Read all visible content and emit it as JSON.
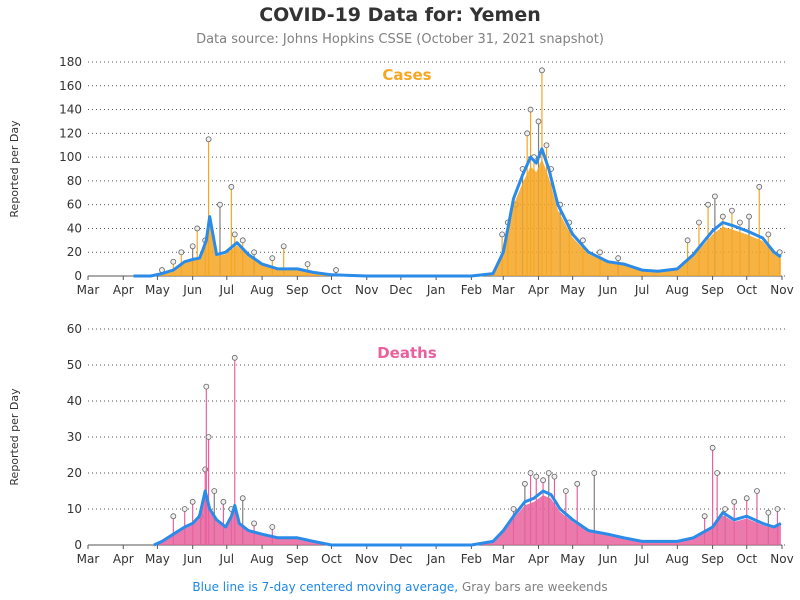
{
  "header": {
    "title": "COVID-19 Data for: Yemen",
    "subtitle": "Data source: Johns Hopkins CSSE (October 31, 2021 snapshot)"
  },
  "footnote": {
    "blue_text": "Blue line is 7-day centered moving average,",
    "gray_text": "Gray bars are weekends"
  },
  "colors": {
    "cases": "#f5a623",
    "deaths": "#e8619e",
    "average": "#2a8be8",
    "weekend": "#808080",
    "grid": "#555555"
  },
  "chart_data": [
    {
      "type": "bar",
      "title": "Cases",
      "ylabel": "Reported per Day",
      "ylim": [
        0,
        180
      ],
      "yticks": [
        0,
        20,
        40,
        60,
        80,
        100,
        120,
        140,
        160,
        180
      ],
      "xticks": [
        "Mar",
        "Apr",
        "May",
        "Jun",
        "Jul",
        "Aug",
        "Sep",
        "Oct",
        "Nov",
        "Dec",
        "Jan",
        "Feb",
        "Mar",
        "Apr",
        "May",
        "Jun",
        "Jul",
        "Aug",
        "Sep",
        "Oct",
        "Nov"
      ],
      "x_range": [
        "2020-03-01",
        "2021-11-01"
      ],
      "grid": "horizontal dotted",
      "series": [
        {
          "name": "Blue line is 7-day centered moving average",
          "x": [
            "2020-04-10",
            "2020-04-25",
            "2020-05-05",
            "2020-05-15",
            "2020-05-25",
            "2020-06-01",
            "2020-06-07",
            "2020-06-10",
            "2020-06-13",
            "2020-06-16",
            "2020-06-22",
            "2020-06-30",
            "2020-07-10",
            "2020-07-20",
            "2020-08-01",
            "2020-08-15",
            "2020-09-01",
            "2020-09-15",
            "2020-10-01",
            "2020-11-01",
            "2020-12-01",
            "2021-01-01",
            "2021-02-01",
            "2021-02-20",
            "2021-03-01",
            "2021-03-10",
            "2021-03-18",
            "2021-03-25",
            "2021-03-30",
            "2021-04-04",
            "2021-04-10",
            "2021-04-18",
            "2021-05-01",
            "2021-05-15",
            "2021-06-01",
            "2021-06-15",
            "2021-07-01",
            "2021-07-15",
            "2021-08-01",
            "2021-08-15",
            "2021-09-01",
            "2021-09-10",
            "2021-09-20",
            "2021-10-01",
            "2021-10-15",
            "2021-10-25",
            "2021-10-31"
          ],
          "values": [
            0,
            0,
            2,
            5,
            12,
            14,
            15,
            22,
            30,
            50,
            18,
            20,
            28,
            18,
            10,
            6,
            6,
            3,
            1,
            0,
            0,
            0,
            0,
            2,
            20,
            65,
            85,
            100,
            95,
            107,
            90,
            60,
            35,
            20,
            12,
            10,
            5,
            4,
            6,
            18,
            38,
            45,
            42,
            38,
            32,
            20,
            16
          ]
        },
        {
          "name": "Cases (daily reported)",
          "x": [
            "2020-05-05",
            "2020-05-15",
            "2020-05-22",
            "2020-06-01",
            "2020-06-05",
            "2020-06-12",
            "2020-06-15",
            "2020-06-25",
            "2020-07-05",
            "2020-07-08",
            "2020-07-15",
            "2020-07-25",
            "2020-08-10",
            "2020-08-20",
            "2020-09-10",
            "2020-10-05",
            "2021-02-28",
            "2021-03-05",
            "2021-03-12",
            "2021-03-18",
            "2021-03-22",
            "2021-03-25",
            "2021-03-28",
            "2021-04-01",
            "2021-04-04",
            "2021-04-08",
            "2021-04-12",
            "2021-04-20",
            "2021-04-28",
            "2021-05-10",
            "2021-05-25",
            "2021-06-10",
            "2021-08-10",
            "2021-08-20",
            "2021-08-28",
            "2021-09-03",
            "2021-09-10",
            "2021-09-18",
            "2021-09-25",
            "2021-10-03",
            "2021-10-12",
            "2021-10-20",
            "2021-10-30"
          ],
          "values": [
            5,
            12,
            20,
            25,
            40,
            30,
            115,
            60,
            75,
            35,
            30,
            20,
            15,
            25,
            10,
            5,
            35,
            45,
            60,
            90,
            120,
            140,
            100,
            130,
            173,
            110,
            90,
            60,
            45,
            30,
            20,
            15,
            30,
            45,
            60,
            67,
            50,
            55,
            45,
            50,
            75,
            35,
            20
          ]
        }
      ]
    },
    {
      "type": "bar",
      "title": "Deaths",
      "ylabel": "Reported per Day",
      "ylim": [
        0,
        60
      ],
      "yticks": [
        0,
        10,
        20,
        30,
        40,
        50,
        60
      ],
      "xticks": [
        "Mar",
        "Apr",
        "May",
        "Jun",
        "Jul",
        "Aug",
        "Sep",
        "Oct",
        "Nov",
        "Dec",
        "Jan",
        "Feb",
        "Mar",
        "Apr",
        "May",
        "Jun",
        "Jul",
        "Aug",
        "Sep",
        "Oct",
        "Nov"
      ],
      "x_range": [
        "2020-03-01",
        "2021-11-01"
      ],
      "grid": "horizontal dotted",
      "series": [
        {
          "name": "Blue line is 7-day centered moving average",
          "x": [
            "2020-04-28",
            "2020-05-05",
            "2020-05-15",
            "2020-05-25",
            "2020-06-01",
            "2020-06-07",
            "2020-06-12",
            "2020-06-16",
            "2020-06-22",
            "2020-06-30",
            "2020-07-05",
            "2020-07-08",
            "2020-07-12",
            "2020-07-20",
            "2020-08-01",
            "2020-08-15",
            "2020-09-01",
            "2020-09-15",
            "2020-10-01",
            "2020-11-01",
            "2020-12-01",
            "2021-01-01",
            "2021-02-01",
            "2021-02-20",
            "2021-03-01",
            "2021-03-10",
            "2021-03-20",
            "2021-03-28",
            "2021-04-05",
            "2021-04-12",
            "2021-04-20",
            "2021-05-01",
            "2021-05-15",
            "2021-06-01",
            "2021-06-15",
            "2021-07-01",
            "2021-07-15",
            "2021-08-01",
            "2021-08-15",
            "2021-09-01",
            "2021-09-10",
            "2021-09-20",
            "2021-10-01",
            "2021-10-15",
            "2021-10-25",
            "2021-10-31"
          ],
          "values": [
            0,
            1,
            3,
            5,
            6,
            8,
            15,
            10,
            7,
            5,
            8,
            11,
            6,
            4,
            3,
            2,
            2,
            1,
            0,
            0,
            0,
            0,
            0,
            1,
            4,
            8,
            12,
            13,
            15,
            14,
            10,
            7,
            4,
            3,
            2,
            1,
            1,
            1,
            2,
            5,
            9,
            7,
            8,
            6,
            5,
            6
          ]
        },
        {
          "name": "Deaths (daily reported)",
          "x": [
            "2020-05-15",
            "2020-05-25",
            "2020-06-01",
            "2020-06-08",
            "2020-06-12",
            "2020-06-13",
            "2020-06-15",
            "2020-06-20",
            "2020-06-28",
            "2020-07-05",
            "2020-07-08",
            "2020-07-15",
            "2020-07-25",
            "2020-08-10",
            "2021-03-10",
            "2021-03-20",
            "2021-03-25",
            "2021-03-30",
            "2021-04-05",
            "2021-04-10",
            "2021-04-15",
            "2021-04-25",
            "2021-05-05",
            "2021-05-20",
            "2021-08-25",
            "2021-09-01",
            "2021-09-05",
            "2021-09-12",
            "2021-09-20",
            "2021-10-01",
            "2021-10-10",
            "2021-10-20",
            "2021-10-28"
          ],
          "values": [
            8,
            10,
            12,
            8,
            21,
            44,
            30,
            15,
            12,
            10,
            52,
            13,
            6,
            5,
            10,
            17,
            20,
            19,
            18,
            20,
            19,
            15,
            17,
            20,
            8,
            27,
            20,
            10,
            12,
            13,
            15,
            9,
            10
          ]
        }
      ]
    }
  ]
}
